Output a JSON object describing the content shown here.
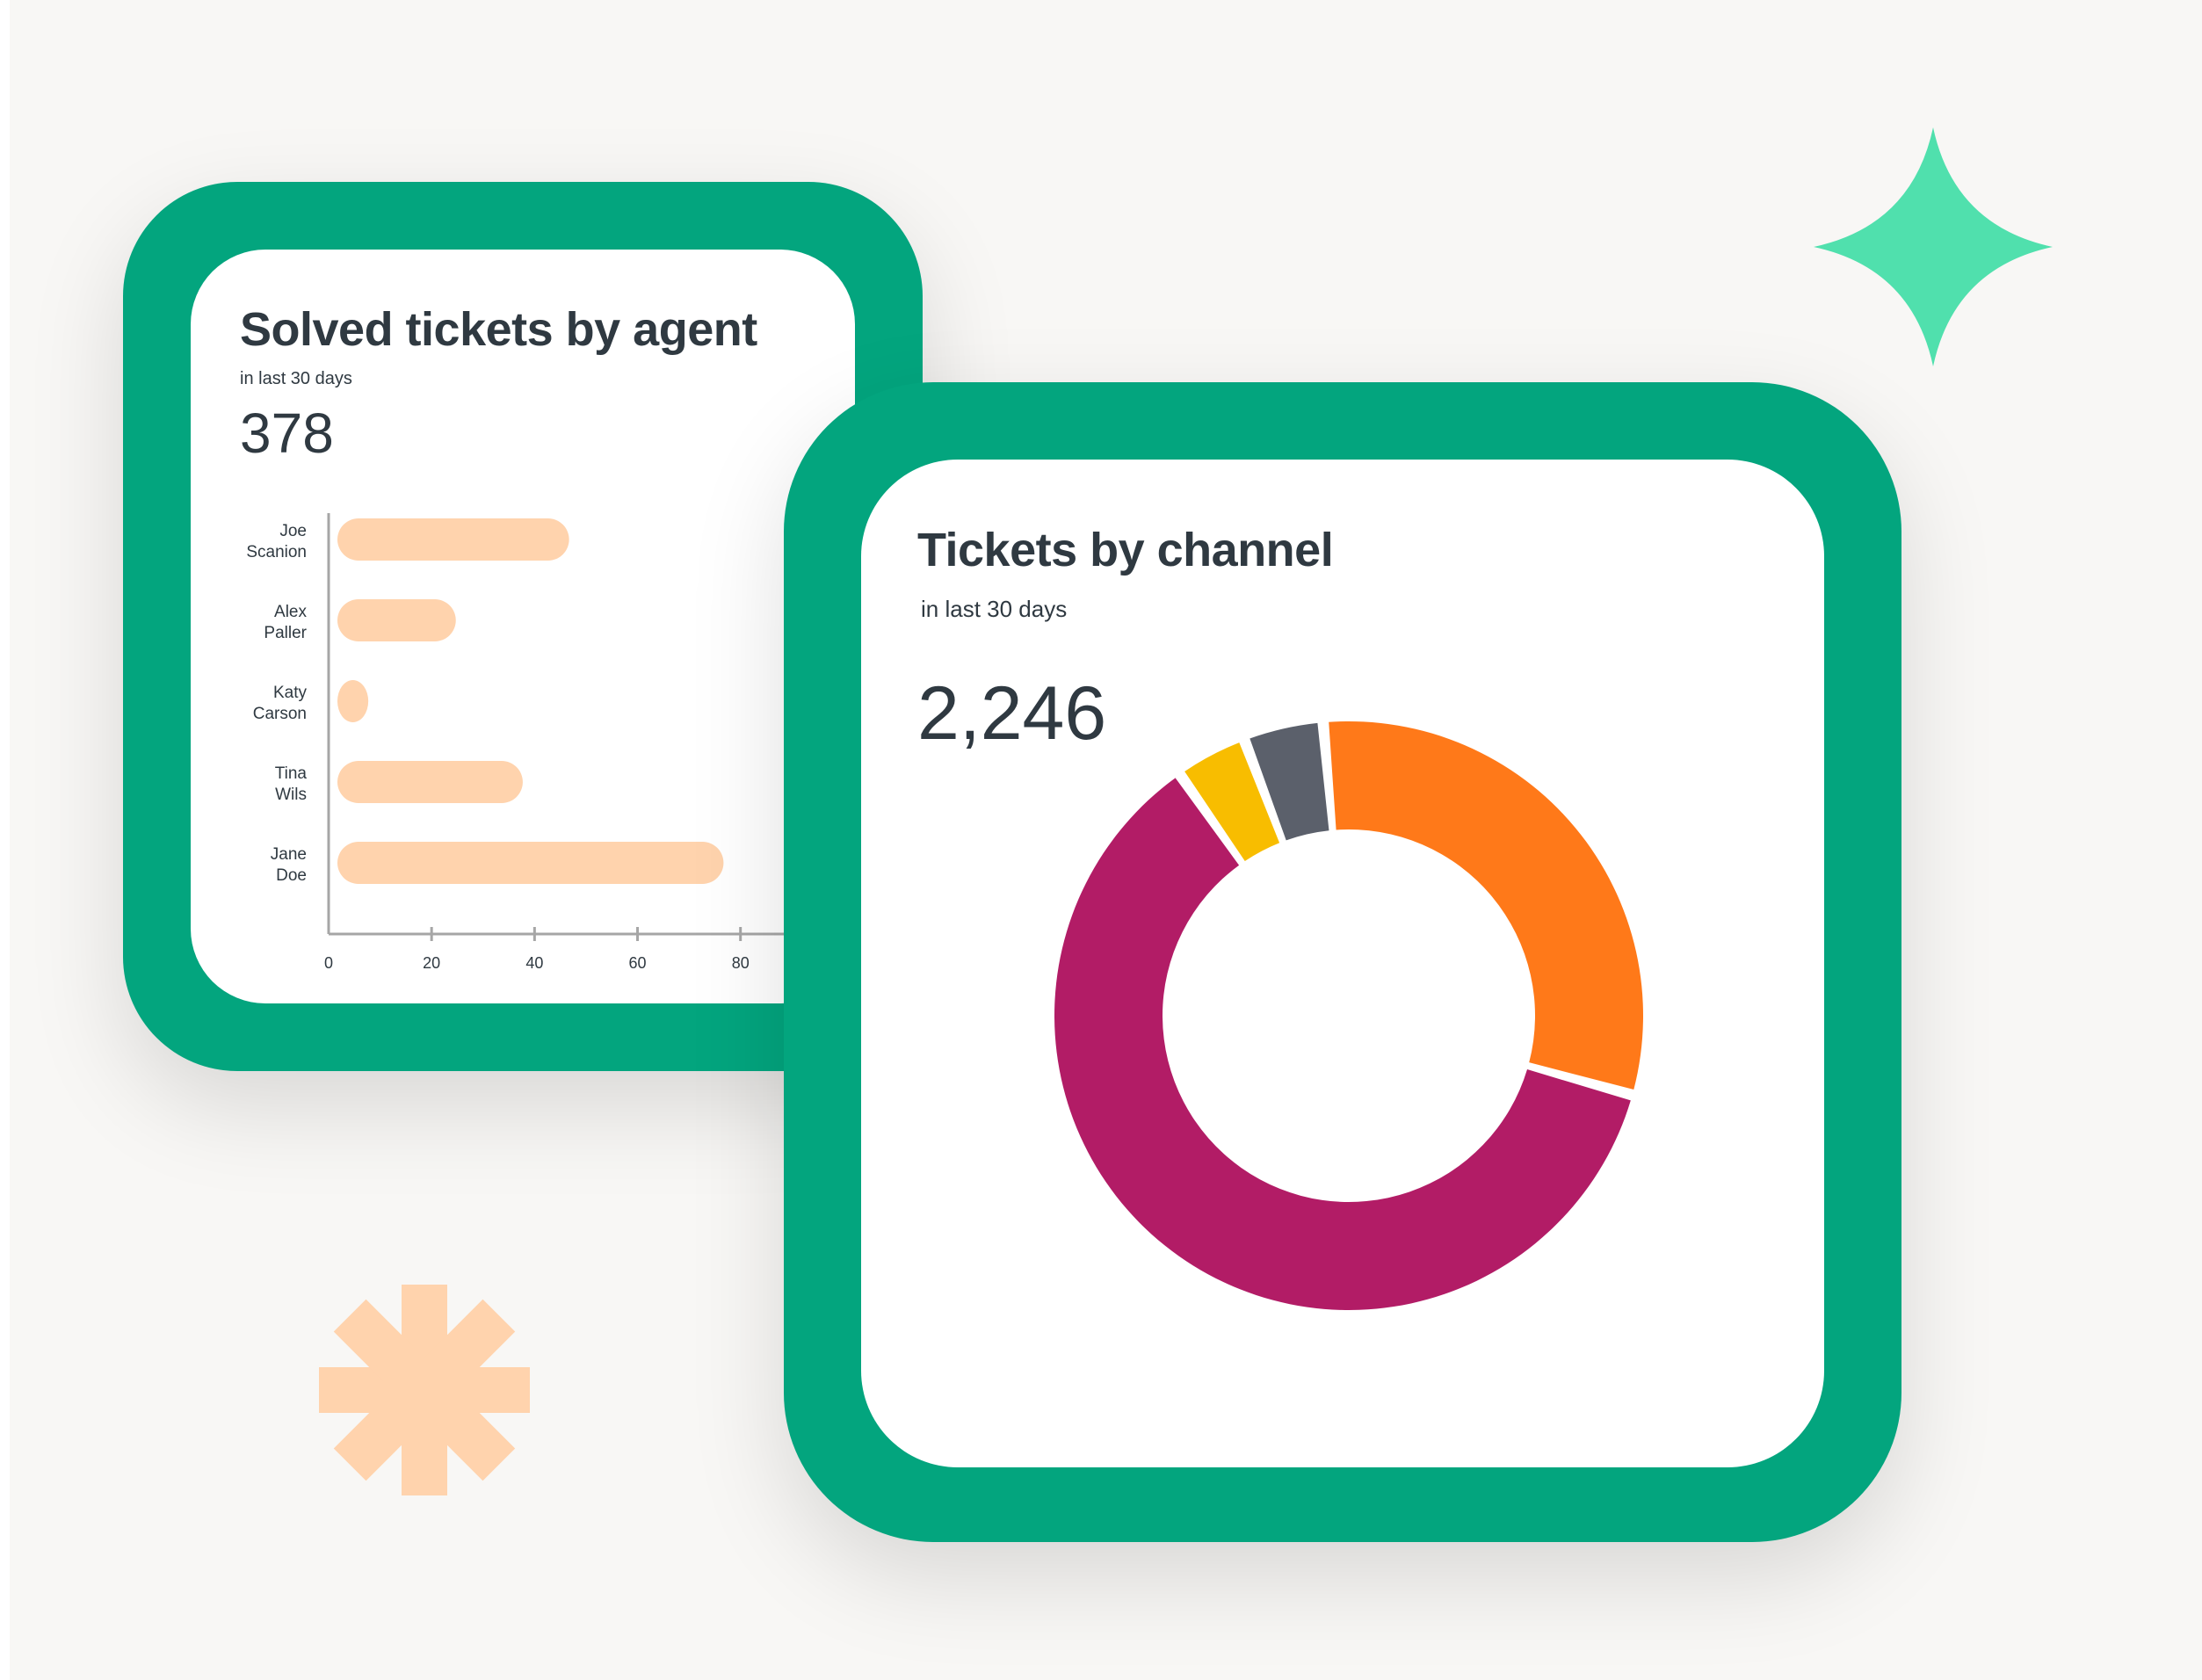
{
  "colors": {
    "frame": "#03a57e",
    "bar": "#ffd3ad",
    "axis": "#a6a6a6",
    "sparkle": "#50e0ad",
    "asterisk": "#ffd3ad"
  },
  "decorations": {
    "top_right": "sparkle-icon",
    "bottom_left": "asterisk-icon"
  },
  "agent_card": {
    "title": "Solved tickets by agent",
    "subtitle": "in last 30 days",
    "total": "378"
  },
  "channel_card": {
    "title": "Tickets by channel",
    "subtitle": "in last 30 days",
    "total": "2,246"
  },
  "chart_data": [
    {
      "type": "bar",
      "orientation": "horizontal",
      "categories": [
        [
          "Joe",
          "Scanion"
        ],
        [
          "Alex",
          "Paller"
        ],
        [
          "Katy",
          "Carson"
        ],
        [
          "Tina",
          "Wils"
        ],
        [
          "Jane",
          "Doe"
        ]
      ],
      "values": [
        45,
        23,
        6,
        36,
        75
      ],
      "xlim": [
        0,
        85
      ],
      "xticks": [
        0,
        20,
        40,
        60,
        80
      ],
      "grid": false
    },
    {
      "type": "pie",
      "variant": "donut",
      "start_angle_deg": -5,
      "slices": [
        {
          "value": 29.5,
          "color": "#ff7919"
        },
        {
          "value": 58.5,
          "color": "#b21c66"
        },
        {
          "value": 3.8,
          "color": "#f8bd00"
        },
        {
          "value": 4.2,
          "color": "#5b606b"
        }
      ],
      "legend": "none"
    }
  ]
}
